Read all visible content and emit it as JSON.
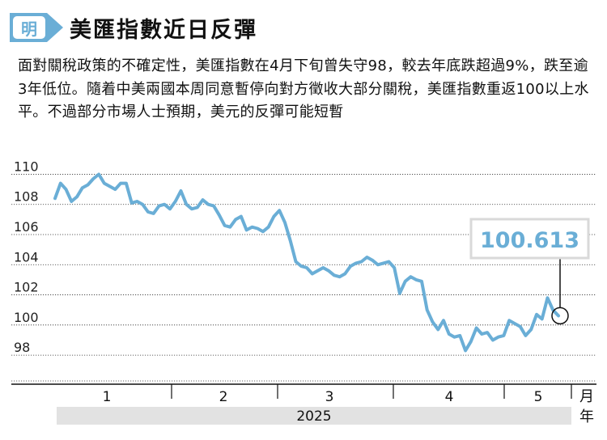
{
  "header": {
    "logo_text": "明",
    "title": "美匯指數近日反彈"
  },
  "description": "面對關稅政策的不確定性，美匯指數在4月下旬曾失守98，較去年底跌超過9%，跌至逾3年低位。隨着中美兩國本周同意暫停向對方徵收大部分關稅，美匯指數重返100以上水平。不過部分市場人士預期，美元的反彈可能短暫",
  "colors": {
    "line": "#6aaed6",
    "callout_text": "#6aaed6",
    "year_bar": "#e2e2e2",
    "grid": "#333333"
  },
  "chart_data": {
    "type": "line",
    "title": "美匯指數近日反彈",
    "y_ticks": [
      110,
      108,
      106,
      104,
      102,
      100,
      98
    ],
    "ylim": [
      97.2,
      110.4
    ],
    "month_labels": [
      "1",
      "2",
      "3",
      "4",
      "5"
    ],
    "month_unit": "月",
    "year_label": "2025",
    "year_unit": "年",
    "callout_value": "100.613",
    "series": [
      {
        "values": [
          108.4,
          109.4,
          109.0,
          108.2,
          108.5,
          109.1,
          109.3,
          109.7,
          110.0,
          109.4,
          109.2,
          109.0,
          109.4,
          109.4,
          108.1,
          108.2,
          108.0,
          107.5,
          107.4,
          107.9,
          108.0,
          107.7,
          108.2,
          108.9,
          108.0,
          107.7,
          107.8,
          108.3,
          108.0,
          107.9,
          107.3,
          106.6,
          106.5,
          107.0,
          107.2,
          106.3,
          106.5,
          106.4,
          106.2,
          106.5,
          107.2,
          107.6,
          106.8,
          105.6,
          104.2,
          103.9,
          103.8,
          103.4,
          103.6,
          103.8,
          103.6,
          103.3,
          103.2,
          103.4,
          103.9,
          104.1,
          104.2,
          104.5,
          104.3,
          104.0,
          104.1,
          104.2,
          103.8,
          102.1,
          102.9,
          103.2,
          103.0,
          102.9,
          101.0,
          100.2,
          99.7,
          100.3,
          99.4,
          99.2,
          99.3,
          98.3,
          98.9,
          99.8,
          99.4,
          99.5,
          99.0,
          99.2,
          99.3,
          100.3,
          100.1,
          99.9,
          99.3,
          99.7,
          100.7,
          100.4,
          101.8,
          101.0,
          100.613
        ]
      }
    ]
  }
}
